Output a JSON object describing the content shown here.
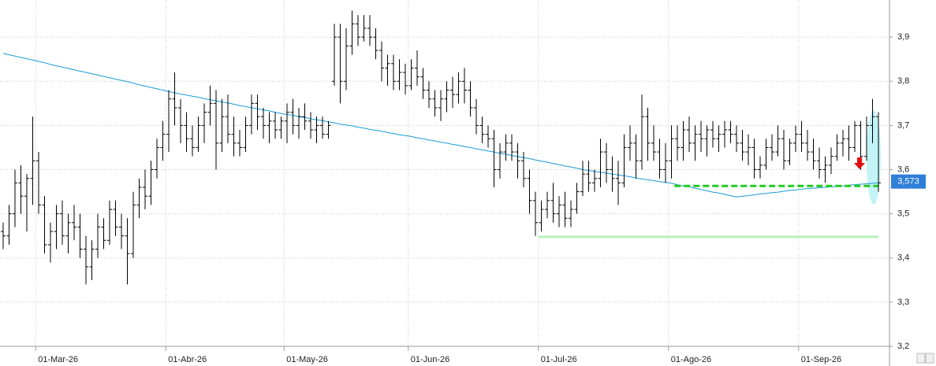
{
  "chart_data": {
    "type": "ohlc",
    "categories": [
      null,
      null,
      null,
      null,
      null,
      null,
      "01-Mar-26",
      null,
      null,
      null,
      null,
      null,
      null,
      null,
      null,
      null,
      null,
      null,
      null,
      null,
      null,
      null,
      null,
      null,
      null,
      null,
      null,
      null,
      "01-Abr-26",
      null,
      null,
      null,
      null,
      null,
      null,
      null,
      null,
      null,
      null,
      null,
      null,
      null,
      null,
      null,
      null,
      null,
      null,
      null,
      "01-May-26",
      null,
      null,
      null,
      null,
      null,
      null,
      null,
      null,
      null,
      null,
      null,
      null,
      null,
      null,
      null,
      null,
      null,
      null,
      null,
      null,
      "01-Jun-26",
      null,
      null,
      null,
      null,
      null,
      null,
      null,
      null,
      null,
      null,
      null,
      null,
      null,
      null,
      null,
      null,
      null,
      null,
      null,
      null,
      null,
      "01-Jul-26",
      null,
      null,
      null,
      null,
      null,
      null,
      null,
      null,
      null,
      null,
      null,
      null,
      null,
      null,
      null,
      null,
      null,
      null,
      null,
      null,
      null,
      "01-Ago-26",
      null,
      null,
      null,
      null,
      null,
      null,
      null,
      null,
      null,
      null,
      null,
      null,
      null,
      null,
      null,
      null,
      null,
      null,
      null,
      null,
      null,
      "01-Sep-26",
      null,
      null,
      null,
      null,
      null,
      null,
      null,
      null,
      null,
      null,
      null,
      null,
      null
    ],
    "open": [
      3.46,
      3.45,
      3.5,
      3.57,
      3.54,
      3.58,
      3.62,
      3.52,
      3.43,
      3.46,
      3.5,
      3.45,
      3.48,
      3.47,
      3.42,
      3.38,
      3.42,
      3.47,
      3.44,
      3.51,
      3.47,
      3.45,
      3.41,
      3.52,
      3.56,
      3.54,
      3.6,
      3.65,
      3.68,
      3.76,
      3.74,
      3.7,
      3.67,
      3.65,
      3.7,
      3.73,
      3.75,
      3.66,
      3.72,
      3.68,
      3.66,
      3.65,
      3.7,
      3.75,
      3.72,
      3.7,
      3.71,
      3.69,
      3.71,
      3.73,
      3.7,
      3.72,
      3.71,
      3.69,
      3.7,
      3.68,
      3.8,
      3.9,
      3.8,
      3.88,
      3.93,
      3.9,
      3.92,
      3.9,
      3.87,
      3.83,
      3.84,
      3.8,
      3.82,
      3.79,
      3.83,
      3.81,
      3.78,
      3.76,
      3.74,
      3.76,
      3.78,
      3.77,
      3.8,
      3.78,
      3.74,
      3.7,
      3.68,
      3.67,
      3.6,
      3.64,
      3.66,
      3.64,
      3.62,
      3.58,
      3.53,
      3.48,
      3.51,
      3.53,
      3.5,
      3.52,
      3.49,
      3.51,
      3.55,
      3.59,
      3.57,
      3.58,
      3.64,
      3.6,
      3.58,
      3.57,
      3.65,
      3.66,
      3.62,
      3.72,
      3.66,
      3.64,
      3.6,
      3.62,
      3.67,
      3.65,
      3.69,
      3.66,
      3.68,
      3.67,
      3.69,
      3.67,
      3.68,
      3.69,
      3.68,
      3.66,
      3.64,
      3.65,
      3.6,
      3.61,
      3.65,
      3.64,
      3.67,
      3.62,
      3.66,
      3.68,
      3.66,
      3.64,
      3.62,
      3.6,
      3.61,
      3.63,
      3.66,
      3.67,
      3.65,
      3.7,
      3.63,
      3.7,
      3.72
    ],
    "high": [
      3.48,
      3.52,
      3.6,
      3.61,
      3.59,
      3.72,
      3.64,
      3.54,
      3.48,
      3.52,
      3.53,
      3.5,
      3.52,
      3.5,
      3.45,
      3.44,
      3.5,
      3.49,
      3.53,
      3.53,
      3.5,
      3.49,
      3.55,
      3.58,
      3.6,
      3.62,
      3.67,
      3.71,
      3.78,
      3.82,
      3.76,
      3.73,
      3.7,
      3.72,
      3.75,
      3.79,
      3.78,
      3.76,
      3.77,
      3.72,
      3.69,
      3.72,
      3.77,
      3.77,
      3.74,
      3.73,
      3.73,
      3.72,
      3.75,
      3.76,
      3.74,
      3.75,
      3.73,
      3.72,
      3.72,
      3.71,
      3.93,
      3.93,
      3.92,
      3.96,
      3.95,
      3.95,
      3.95,
      3.92,
      3.89,
      3.86,
      3.86,
      3.85,
      3.84,
      3.85,
      3.87,
      3.83,
      3.8,
      3.78,
      3.78,
      3.8,
      3.81,
      3.82,
      3.83,
      3.8,
      3.76,
      3.72,
      3.7,
      3.69,
      3.66,
      3.68,
      3.68,
      3.66,
      3.64,
      3.6,
      3.55,
      3.53,
      3.55,
      3.57,
      3.54,
      3.55,
      3.53,
      3.57,
      3.62,
      3.62,
      3.6,
      3.67,
      3.66,
      3.63,
      3.62,
      3.68,
      3.7,
      3.68,
      3.77,
      3.74,
      3.7,
      3.67,
      3.66,
      3.7,
      3.7,
      3.71,
      3.72,
      3.7,
      3.71,
      3.7,
      3.71,
      3.7,
      3.71,
      3.71,
      3.7,
      3.69,
      3.68,
      3.67,
      3.63,
      3.67,
      3.68,
      3.7,
      3.69,
      3.67,
      3.7,
      3.71,
      3.69,
      3.67,
      3.65,
      3.63,
      3.65,
      3.68,
      3.69,
      3.7,
      3.71,
      3.71,
      3.72,
      3.76,
      3.73
    ],
    "low": [
      3.42,
      3.43,
      3.47,
      3.5,
      3.46,
      3.52,
      3.5,
      3.41,
      3.39,
      3.42,
      3.43,
      3.41,
      3.44,
      3.4,
      3.34,
      3.35,
      3.4,
      3.42,
      3.43,
      3.45,
      3.42,
      3.34,
      3.4,
      3.49,
      3.51,
      3.52,
      3.58,
      3.62,
      3.64,
      3.7,
      3.66,
      3.64,
      3.63,
      3.64,
      3.66,
      3.7,
      3.6,
      3.64,
      3.66,
      3.63,
      3.63,
      3.64,
      3.68,
      3.69,
      3.67,
      3.66,
      3.67,
      3.67,
      3.66,
      3.68,
      3.67,
      3.69,
      3.67,
      3.66,
      3.67,
      3.67,
      3.79,
      3.75,
      3.78,
      3.86,
      3.88,
      3.89,
      3.88,
      3.85,
      3.8,
      3.79,
      3.78,
      3.78,
      3.77,
      3.78,
      3.79,
      3.76,
      3.74,
      3.72,
      3.71,
      3.73,
      3.74,
      3.75,
      3.75,
      3.72,
      3.68,
      3.66,
      3.65,
      3.56,
      3.58,
      3.62,
      3.62,
      3.58,
      3.56,
      3.5,
      3.45,
      3.46,
      3.49,
      3.48,
      3.47,
      3.47,
      3.47,
      3.5,
      3.54,
      3.55,
      3.55,
      3.56,
      3.57,
      3.55,
      3.52,
      3.56,
      3.62,
      3.58,
      3.6,
      3.62,
      3.62,
      3.58,
      3.57,
      3.58,
      3.62,
      3.62,
      3.64,
      3.62,
      3.64,
      3.63,
      3.65,
      3.64,
      3.65,
      3.66,
      3.64,
      3.62,
      3.61,
      3.58,
      3.58,
      3.6,
      3.62,
      3.63,
      3.6,
      3.61,
      3.64,
      3.64,
      3.62,
      3.6,
      3.58,
      3.57,
      3.59,
      3.62,
      3.63,
      3.62,
      3.64,
      3.6,
      3.62,
      3.66,
      3.55
    ],
    "close": [
      3.45,
      3.5,
      3.57,
      3.54,
      3.58,
      3.62,
      3.52,
      3.43,
      3.46,
      3.5,
      3.45,
      3.48,
      3.47,
      3.42,
      3.38,
      3.42,
      3.47,
      3.44,
      3.51,
      3.47,
      3.45,
      3.41,
      3.52,
      3.56,
      3.54,
      3.6,
      3.65,
      3.68,
      3.76,
      3.74,
      3.7,
      3.67,
      3.65,
      3.7,
      3.73,
      3.75,
      3.66,
      3.72,
      3.68,
      3.66,
      3.65,
      3.7,
      3.75,
      3.72,
      3.7,
      3.71,
      3.69,
      3.71,
      3.73,
      3.7,
      3.72,
      3.71,
      3.69,
      3.7,
      3.68,
      3.7,
      3.9,
      3.8,
      3.88,
      3.93,
      3.9,
      3.92,
      3.9,
      3.87,
      3.83,
      3.84,
      3.8,
      3.82,
      3.79,
      3.83,
      3.81,
      3.78,
      3.76,
      3.74,
      3.76,
      3.78,
      3.77,
      3.8,
      3.78,
      3.74,
      3.7,
      3.68,
      3.67,
      3.6,
      3.64,
      3.66,
      3.64,
      3.62,
      3.58,
      3.53,
      3.48,
      3.51,
      3.53,
      3.5,
      3.52,
      3.49,
      3.51,
      3.55,
      3.59,
      3.57,
      3.58,
      3.64,
      3.6,
      3.58,
      3.57,
      3.65,
      3.66,
      3.62,
      3.72,
      3.66,
      3.64,
      3.6,
      3.62,
      3.67,
      3.65,
      3.69,
      3.66,
      3.68,
      3.67,
      3.69,
      3.67,
      3.68,
      3.69,
      3.68,
      3.66,
      3.64,
      3.65,
      3.6,
      3.61,
      3.65,
      3.64,
      3.67,
      3.62,
      3.66,
      3.68,
      3.66,
      3.64,
      3.62,
      3.6,
      3.61,
      3.63,
      3.66,
      3.67,
      3.65,
      3.7,
      3.63,
      3.7,
      3.72,
      3.57
    ],
    "color": "#000000",
    "ma": {
      "color": "#1a9bd7",
      "values": [
        3.863,
        3.86,
        3.857,
        3.854,
        3.851,
        3.848,
        3.845,
        3.842,
        3.838,
        3.835,
        3.832,
        3.829,
        3.826,
        3.823,
        3.82,
        3.817,
        3.814,
        3.811,
        3.808,
        3.805,
        3.802,
        3.799,
        3.796,
        3.792,
        3.789,
        3.786,
        3.783,
        3.78,
        3.777,
        3.774,
        3.771,
        3.769,
        3.766,
        3.764,
        3.761,
        3.758,
        3.756,
        3.753,
        3.751,
        3.748,
        3.745,
        3.743,
        3.74,
        3.738,
        3.735,
        3.733,
        3.73,
        3.727,
        3.725,
        3.723,
        3.72,
        3.718,
        3.715,
        3.713,
        3.711,
        3.708,
        3.706,
        3.703,
        3.701,
        3.699,
        3.696,
        3.694,
        3.691,
        3.689,
        3.687,
        3.684,
        3.682,
        3.679,
        3.677,
        3.675,
        3.672,
        3.67,
        3.667,
        3.665,
        3.662,
        3.66,
        3.657,
        3.655,
        3.652,
        3.65,
        3.647,
        3.645,
        3.642,
        3.64,
        3.637,
        3.635,
        3.632,
        3.63,
        3.627,
        3.625,
        3.622,
        3.619,
        3.617,
        3.614,
        3.611,
        3.608,
        3.606,
        3.603,
        3.6,
        3.598,
        3.596,
        3.594,
        3.592,
        3.59,
        3.588,
        3.586,
        3.584,
        3.581,
        3.579,
        3.577,
        3.575,
        3.573,
        3.571,
        3.569,
        3.566,
        3.563,
        3.561,
        3.558,
        3.555,
        3.552,
        3.549,
        3.547,
        3.544,
        3.541,
        3.538,
        3.54,
        3.541,
        3.543,
        3.545,
        3.546,
        3.548,
        3.549,
        3.551,
        3.553,
        3.554,
        3.556,
        3.557,
        3.558,
        3.559,
        3.56,
        3.561,
        3.562,
        3.563,
        3.565,
        3.566,
        3.567,
        3.568,
        3.569,
        3.57
      ]
    },
    "levels": [
      {
        "value": 3.563,
        "color": "#22cc22",
        "style": "dashed"
      },
      {
        "value": 3.448,
        "color": "#b6f2b6",
        "style": "solid"
      }
    ],
    "last_price": {
      "value": 3.573,
      "label": "3,573"
    },
    "ylim": [
      3.2,
      3.984
    ],
    "yticks": [
      {
        "value": 3.2,
        "label": "3,2"
      },
      {
        "value": 3.3,
        "label": "3,3"
      },
      {
        "value": 3.4,
        "label": "3,4"
      },
      {
        "value": 3.5,
        "label": "3,5"
      },
      {
        "value": 3.6,
        "label": "3,6"
      },
      {
        "value": 3.7,
        "label": "3,7"
      },
      {
        "value": 3.8,
        "label": "3,8"
      },
      {
        "value": 3.9,
        "label": "3,9"
      }
    ],
    "grid": true
  }
}
